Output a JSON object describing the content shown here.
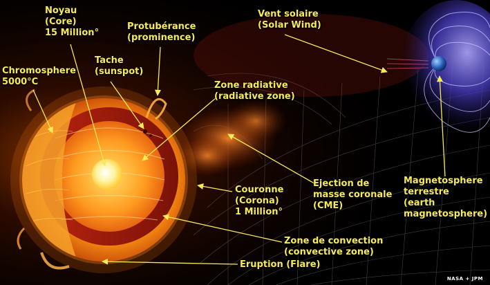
{
  "labels": {
    "core": {
      "line1": "Noyau",
      "line2": "(Core)",
      "line3": "15 Million°"
    },
    "prominence": {
      "line1": "Protubérance",
      "line2": "(prominence)"
    },
    "sunspot": {
      "line1": "Tache",
      "line2": "(sunspot)"
    },
    "chromosphere": {
      "line1": "Chromosphere",
      "line2": "5000°C"
    },
    "solar_wind": {
      "line1": "Vent solaire",
      "line2": "(Solar Wind)"
    },
    "radiative_zone": {
      "line1": "Zone radiative",
      "line2": "(radiative zone)"
    },
    "corona": {
      "line1": "Couronne",
      "line2": "(Corona)",
      "line3": "1 Million°"
    },
    "cme": {
      "line1": "Ejection de",
      "line2": "masse coronale",
      "line3": "(CME)"
    },
    "magnetosphere": {
      "line1": "Magnetosphere",
      "line2": "terrestre",
      "line3": "(earth",
      "line4": "magnetosphere)"
    },
    "convective_zone": {
      "line1": "Zone de convection",
      "line2": "(convective zone)"
    },
    "flare": {
      "line1": "Eruption (Flare)"
    }
  },
  "credit": "NASA + JPM",
  "colors": {
    "label_text": "#f6ea5a",
    "arrow": "#f6ea5a",
    "sun_core": "#fff6b0",
    "sun_surface": "#f07a10",
    "magnetosphere": "#5a4bd8",
    "grid": "#8a8a8a"
  }
}
